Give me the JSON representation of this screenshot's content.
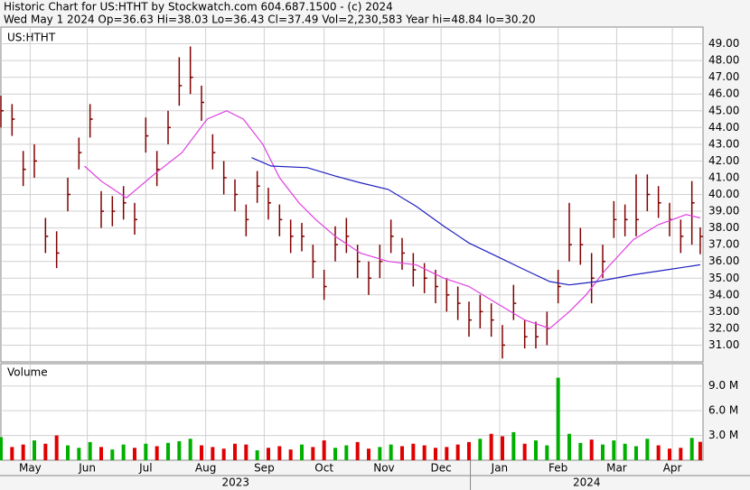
{
  "header": {
    "line1": "Historic Chart for US:HTHT by Stockwatch.com 604.687.1500 - (c) 2024",
    "line2": "Wed May  1 2024  Op=36.63  Hi=38.03  Lo=36.43  Cl=37.49  Vol=2,230,583  Year hi=48.84  lo=30.20"
  },
  "years": [
    "2023",
    "2024"
  ],
  "chart_data": [
    {
      "type": "ohlc",
      "label": "US:HTHT",
      "color": "#800000",
      "grid": true,
      "x": [
        0,
        4,
        8,
        12,
        16,
        20,
        24,
        28,
        32,
        36,
        40,
        44,
        48,
        52,
        56,
        60,
        64,
        68,
        72,
        76,
        80,
        84,
        88,
        92,
        96,
        100,
        104,
        108,
        112,
        116,
        120,
        124,
        128,
        132,
        136,
        140,
        144,
        148,
        152,
        156,
        160,
        164,
        168,
        172,
        176,
        180,
        184,
        188,
        192,
        196,
        200,
        204,
        208,
        212,
        216,
        220,
        224,
        228,
        232,
        236,
        240,
        244,
        248,
        251
      ],
      "high": [
        45.9,
        45.4,
        42.6,
        43.0,
        38.6,
        37.8,
        41.0,
        43.4,
        45.4,
        40.2,
        39.9,
        40.5,
        39.5,
        44.6,
        42.6,
        45.0,
        48.2,
        48.84,
        46.5,
        43.6,
        42.0,
        40.9,
        39.4,
        41.4,
        40.4,
        39.4,
        38.5,
        38.3,
        37.0,
        35.5,
        38.1,
        38.6,
        37.0,
        36.0,
        37.0,
        38.5,
        37.4,
        36.5,
        35.9,
        35.5,
        35.0,
        34.5,
        33.6,
        34.0,
        33.5,
        32.2,
        34.6,
        32.5,
        32.4,
        33.0,
        35.5,
        39.5,
        38.0,
        36.5,
        37.0,
        39.6,
        39.4,
        41.2,
        41.2,
        40.5,
        39.5,
        38.5,
        40.8,
        38.03
      ],
      "low": [
        44.0,
        43.5,
        40.5,
        41.0,
        36.5,
        35.6,
        39.0,
        41.5,
        43.4,
        38.0,
        38.1,
        38.5,
        37.6,
        42.5,
        40.5,
        43.0,
        45.3,
        46.0,
        44.4,
        41.5,
        40.0,
        39.0,
        37.5,
        39.5,
        38.5,
        37.5,
        36.5,
        36.6,
        35.0,
        33.7,
        36.0,
        36.5,
        35.0,
        34.0,
        35.0,
        36.5,
        35.5,
        34.5,
        34.1,
        33.5,
        33.0,
        32.5,
        31.5,
        32.0,
        31.5,
        30.2,
        32.5,
        30.8,
        30.8,
        31.0,
        33.5,
        36.0,
        35.8,
        33.5,
        35.0,
        37.4,
        37.5,
        37.5,
        39.0,
        38.6,
        37.5,
        36.5,
        37.0,
        36.43
      ],
      "close": [
        45.0,
        44.5,
        41.5,
        42.0,
        37.5,
        36.5,
        40.0,
        42.5,
        44.5,
        39.0,
        39.0,
        39.5,
        38.5,
        43.5,
        41.5,
        44.0,
        46.5,
        47.0,
        45.5,
        42.5,
        41.0,
        40.0,
        38.5,
        40.5,
        39.5,
        38.5,
        37.5,
        37.5,
        36.0,
        34.5,
        37.0,
        37.5,
        36.0,
        35.0,
        36.0,
        37.5,
        36.5,
        35.5,
        35.0,
        34.5,
        34.0,
        33.5,
        32.5,
        33.0,
        32.5,
        31.0,
        33.5,
        31.5,
        31.5,
        32.0,
        34.5,
        37.0,
        37.0,
        35.0,
        36.0,
        38.5,
        38.5,
        38.5,
        40.0,
        39.5,
        38.5,
        37.5,
        39.5,
        37.49
      ],
      "lines": [
        {
          "color": "#e040e0",
          "x": [
            30,
            36,
            45,
            55,
            65,
            74,
            81,
            87,
            94,
            100,
            107,
            113,
            120,
            129,
            139,
            149,
            159,
            168,
            178,
            188,
            197,
            204,
            210,
            217,
            227,
            236,
            246,
            251
          ],
          "values": [
            41.7,
            40.8,
            39.8,
            41.2,
            42.5,
            44.5,
            45.0,
            44.5,
            43.0,
            41.0,
            39.5,
            38.5,
            37.5,
            36.5,
            36.0,
            35.8,
            35.0,
            34.5,
            33.5,
            32.5,
            32.0,
            33.0,
            34.0,
            35.5,
            37.3,
            38.2,
            38.8,
            38.6
          ]
        },
        {
          "color": "#2020c0",
          "x": [
            90,
            97,
            110,
            120,
            129,
            139,
            149,
            159,
            168,
            178,
            188,
            197,
            204,
            214,
            227,
            239,
            251
          ],
          "values": [
            42.2,
            41.7,
            41.6,
            41.1,
            40.7,
            40.3,
            39.3,
            38.1,
            37.1,
            36.3,
            35.5,
            34.8,
            34.6,
            34.8,
            35.2,
            35.5,
            35.8
          ]
        }
      ],
      "xlim": [
        0,
        252
      ],
      "xticks": [
        {
          "value": 10.5,
          "label": "May"
        },
        {
          "value": 31,
          "label": "Jun"
        },
        {
          "value": 52,
          "label": "Jul"
        },
        {
          "value": 73.5,
          "label": "Aug"
        },
        {
          "value": 94.5,
          "label": "Sep"
        },
        {
          "value": 116,
          "label": "Oct"
        },
        {
          "value": 137.5,
          "label": "Nov"
        },
        {
          "value": 158,
          "label": "Dec"
        },
        {
          "value": 179,
          "label": "Jan"
        },
        {
          "value": 200,
          "label": "Feb"
        },
        {
          "value": 221,
          "label": "Mar"
        },
        {
          "value": 241,
          "label": "Apr"
        }
      ],
      "ylim": [
        30.0,
        50.0
      ],
      "yticks": [
        {
          "value": 31,
          "label": "31.00"
        },
        {
          "value": 32,
          "label": "32.00"
        },
        {
          "value": 33,
          "label": "33.00"
        },
        {
          "value": 34,
          "label": "34.00"
        },
        {
          "value": 35,
          "label": "35.00"
        },
        {
          "value": 36,
          "label": "36.00"
        },
        {
          "value": 37,
          "label": "37.00"
        },
        {
          "value": 38,
          "label": "38.00"
        },
        {
          "value": 39,
          "label": "39.00"
        },
        {
          "value": 40,
          "label": "40.00"
        },
        {
          "value": 41,
          "label": "41.00"
        },
        {
          "value": 42,
          "label": "42.00"
        },
        {
          "value": 43,
          "label": "43.00"
        },
        {
          "value": 44,
          "label": "44.00"
        },
        {
          "value": 45,
          "label": "45.00"
        },
        {
          "value": 46,
          "label": "46.00"
        },
        {
          "value": 47,
          "label": "47.00"
        },
        {
          "value": 48,
          "label": "48.00"
        },
        {
          "value": 49,
          "label": "49.00"
        }
      ]
    },
    {
      "type": "bar",
      "title": "Volume",
      "up_color": "#00b000",
      "down_color": "#e00000",
      "grid": true,
      "values": [
        2.8,
        1.6,
        1.9,
        2.4,
        2.0,
        3.0,
        1.8,
        1.5,
        2.2,
        1.6,
        1.3,
        1.9,
        1.5,
        2.0,
        1.7,
        2.1,
        2.3,
        2.6,
        1.8,
        1.6,
        1.4,
        2.0,
        1.9,
        1.2,
        1.5,
        1.7,
        1.3,
        1.9,
        1.6,
        2.4,
        1.5,
        1.8,
        2.2,
        1.4,
        1.6,
        1.9,
        1.7,
        2.0,
        1.8,
        1.5,
        1.6,
        1.9,
        2.2,
        2.6,
        3.2,
        2.9,
        3.4,
        2.0,
        2.4,
        1.8,
        10.0,
        3.2,
        2.1,
        2.5,
        1.9,
        2.4,
        2.0,
        1.7,
        2.6,
        1.8,
        1.4,
        1.5,
        2.7,
        2.23
      ],
      "ylim": [
        0,
        11.7
      ],
      "yticks": [
        {
          "value": 3,
          "label": "3.0 M"
        },
        {
          "value": 6,
          "label": "6.0 M"
        },
        {
          "value": 9,
          "label": "9.0 M"
        }
      ]
    }
  ]
}
